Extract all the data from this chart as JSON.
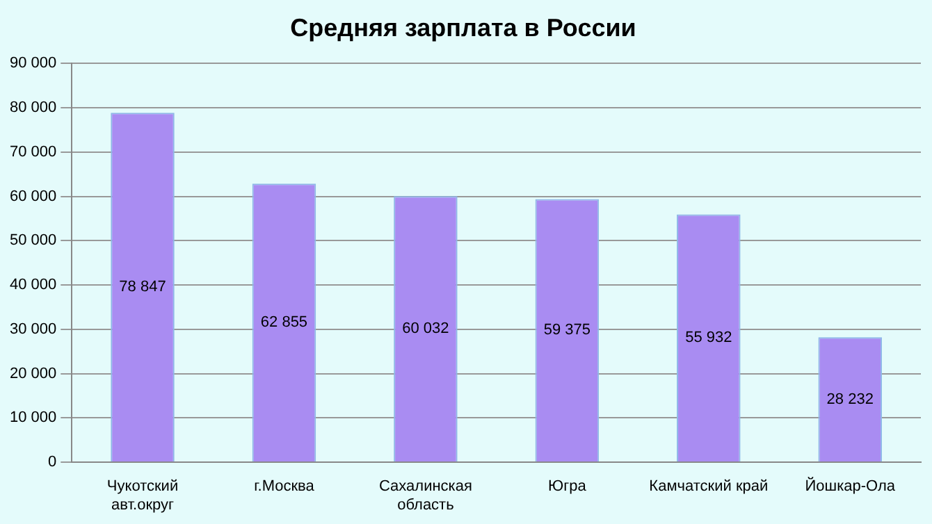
{
  "chart_data": {
    "type": "bar",
    "title": "Средняя зарплата в России",
    "categories": [
      "Чукотский\nавт.округ",
      "г.Москва",
      "Сахалинская\nобласть",
      "Югра",
      "Камчатский край",
      "Йошкар-Ола"
    ],
    "values": [
      78847,
      62855,
      60032,
      59375,
      55932,
      28232
    ],
    "value_labels": [
      "78 847",
      "62 855",
      "60 032",
      "59 375",
      "55 932",
      "28 232"
    ],
    "color": "#a98cf2",
    "ylim": [
      0,
      90000
    ],
    "yticks": [
      {
        "value": 0,
        "label": "0"
      },
      {
        "value": 10000,
        "label": "10 000"
      },
      {
        "value": 20000,
        "label": "20 000"
      },
      {
        "value": 30000,
        "label": "30 000"
      },
      {
        "value": 40000,
        "label": "40 000"
      },
      {
        "value": 50000,
        "label": "50 000"
      },
      {
        "value": 60000,
        "label": "60 000"
      },
      {
        "value": 70000,
        "label": "70 000"
      },
      {
        "value": 80000,
        "label": "80 000"
      },
      {
        "value": 90000,
        "label": "90 000"
      }
    ],
    "grid": "y",
    "legend": false
  }
}
